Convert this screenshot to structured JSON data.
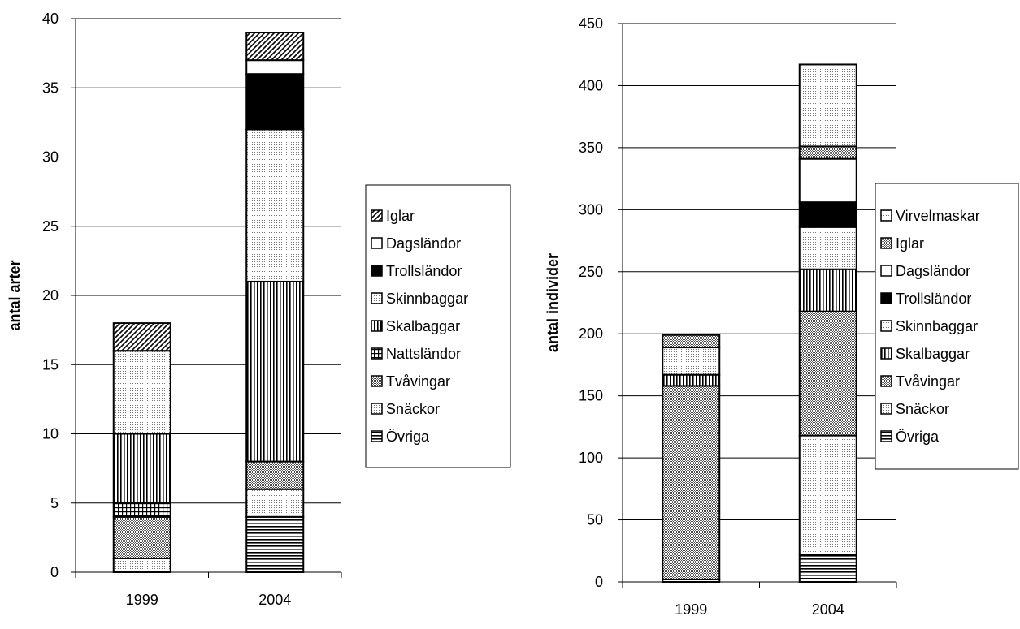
{
  "chart_data": [
    {
      "type": "bar",
      "stacked": true,
      "ylabel": "antal arter",
      "ylim": [
        0,
        40
      ],
      "yticks": [
        0,
        5,
        10,
        15,
        20,
        25,
        30,
        35,
        40
      ],
      "grid": true,
      "legend_position": "right",
      "categories": [
        "1999",
        "2004"
      ],
      "series": [
        {
          "name": "Övriga",
          "values": [
            0,
            4
          ],
          "pattern": "hlines"
        },
        {
          "name": "Snäckor",
          "values": [
            1,
            2
          ],
          "pattern": "fine-dots"
        },
        {
          "name": "Tvåvingar",
          "values": [
            3,
            2
          ],
          "pattern": "dense-dots"
        },
        {
          "name": "Nattsländor",
          "values": [
            1,
            0
          ],
          "pattern": "grid"
        },
        {
          "name": "Skalbaggar",
          "values": [
            5,
            13
          ],
          "pattern": "vlines"
        },
        {
          "name": "Skinnbaggar",
          "values": [
            6,
            11
          ],
          "pattern": "fine-dots"
        },
        {
          "name": "Trollsländor",
          "values": [
            0,
            4
          ],
          "pattern": "black"
        },
        {
          "name": "Dagsländor",
          "values": [
            0,
            1
          ],
          "pattern": "white"
        },
        {
          "name": "Iglar",
          "values": [
            2,
            2
          ],
          "pattern": "diag"
        }
      ]
    },
    {
      "type": "bar",
      "stacked": true,
      "ylabel": "antal individer",
      "ylim": [
        0,
        450
      ],
      "yticks": [
        0,
        50,
        100,
        150,
        200,
        250,
        300,
        350,
        400,
        450
      ],
      "grid": true,
      "legend_position": "right",
      "categories": [
        "1999",
        "2004"
      ],
      "series": [
        {
          "name": "Övriga",
          "values": [
            2,
            22
          ],
          "pattern": "hlines"
        },
        {
          "name": "Snäckor",
          "values": [
            0,
            96
          ],
          "pattern": "fine-dots"
        },
        {
          "name": "Tvåvingar",
          "values": [
            156,
            100
          ],
          "pattern": "dense-dots"
        },
        {
          "name": "Skalbaggar",
          "values": [
            9,
            34
          ],
          "pattern": "vlines"
        },
        {
          "name": "Skinnbaggar",
          "values": [
            22,
            34
          ],
          "pattern": "fine-dots"
        },
        {
          "name": "Trollsländor",
          "values": [
            0,
            20
          ],
          "pattern": "black"
        },
        {
          "name": "Dagsländor",
          "values": [
            0,
            35
          ],
          "pattern": "white"
        },
        {
          "name": "Iglar",
          "values": [
            10,
            10
          ],
          "pattern": "dense-dots"
        },
        {
          "name": "Virvelmaskar",
          "values": [
            0,
            66
          ],
          "pattern": "fine-dots"
        }
      ]
    }
  ]
}
